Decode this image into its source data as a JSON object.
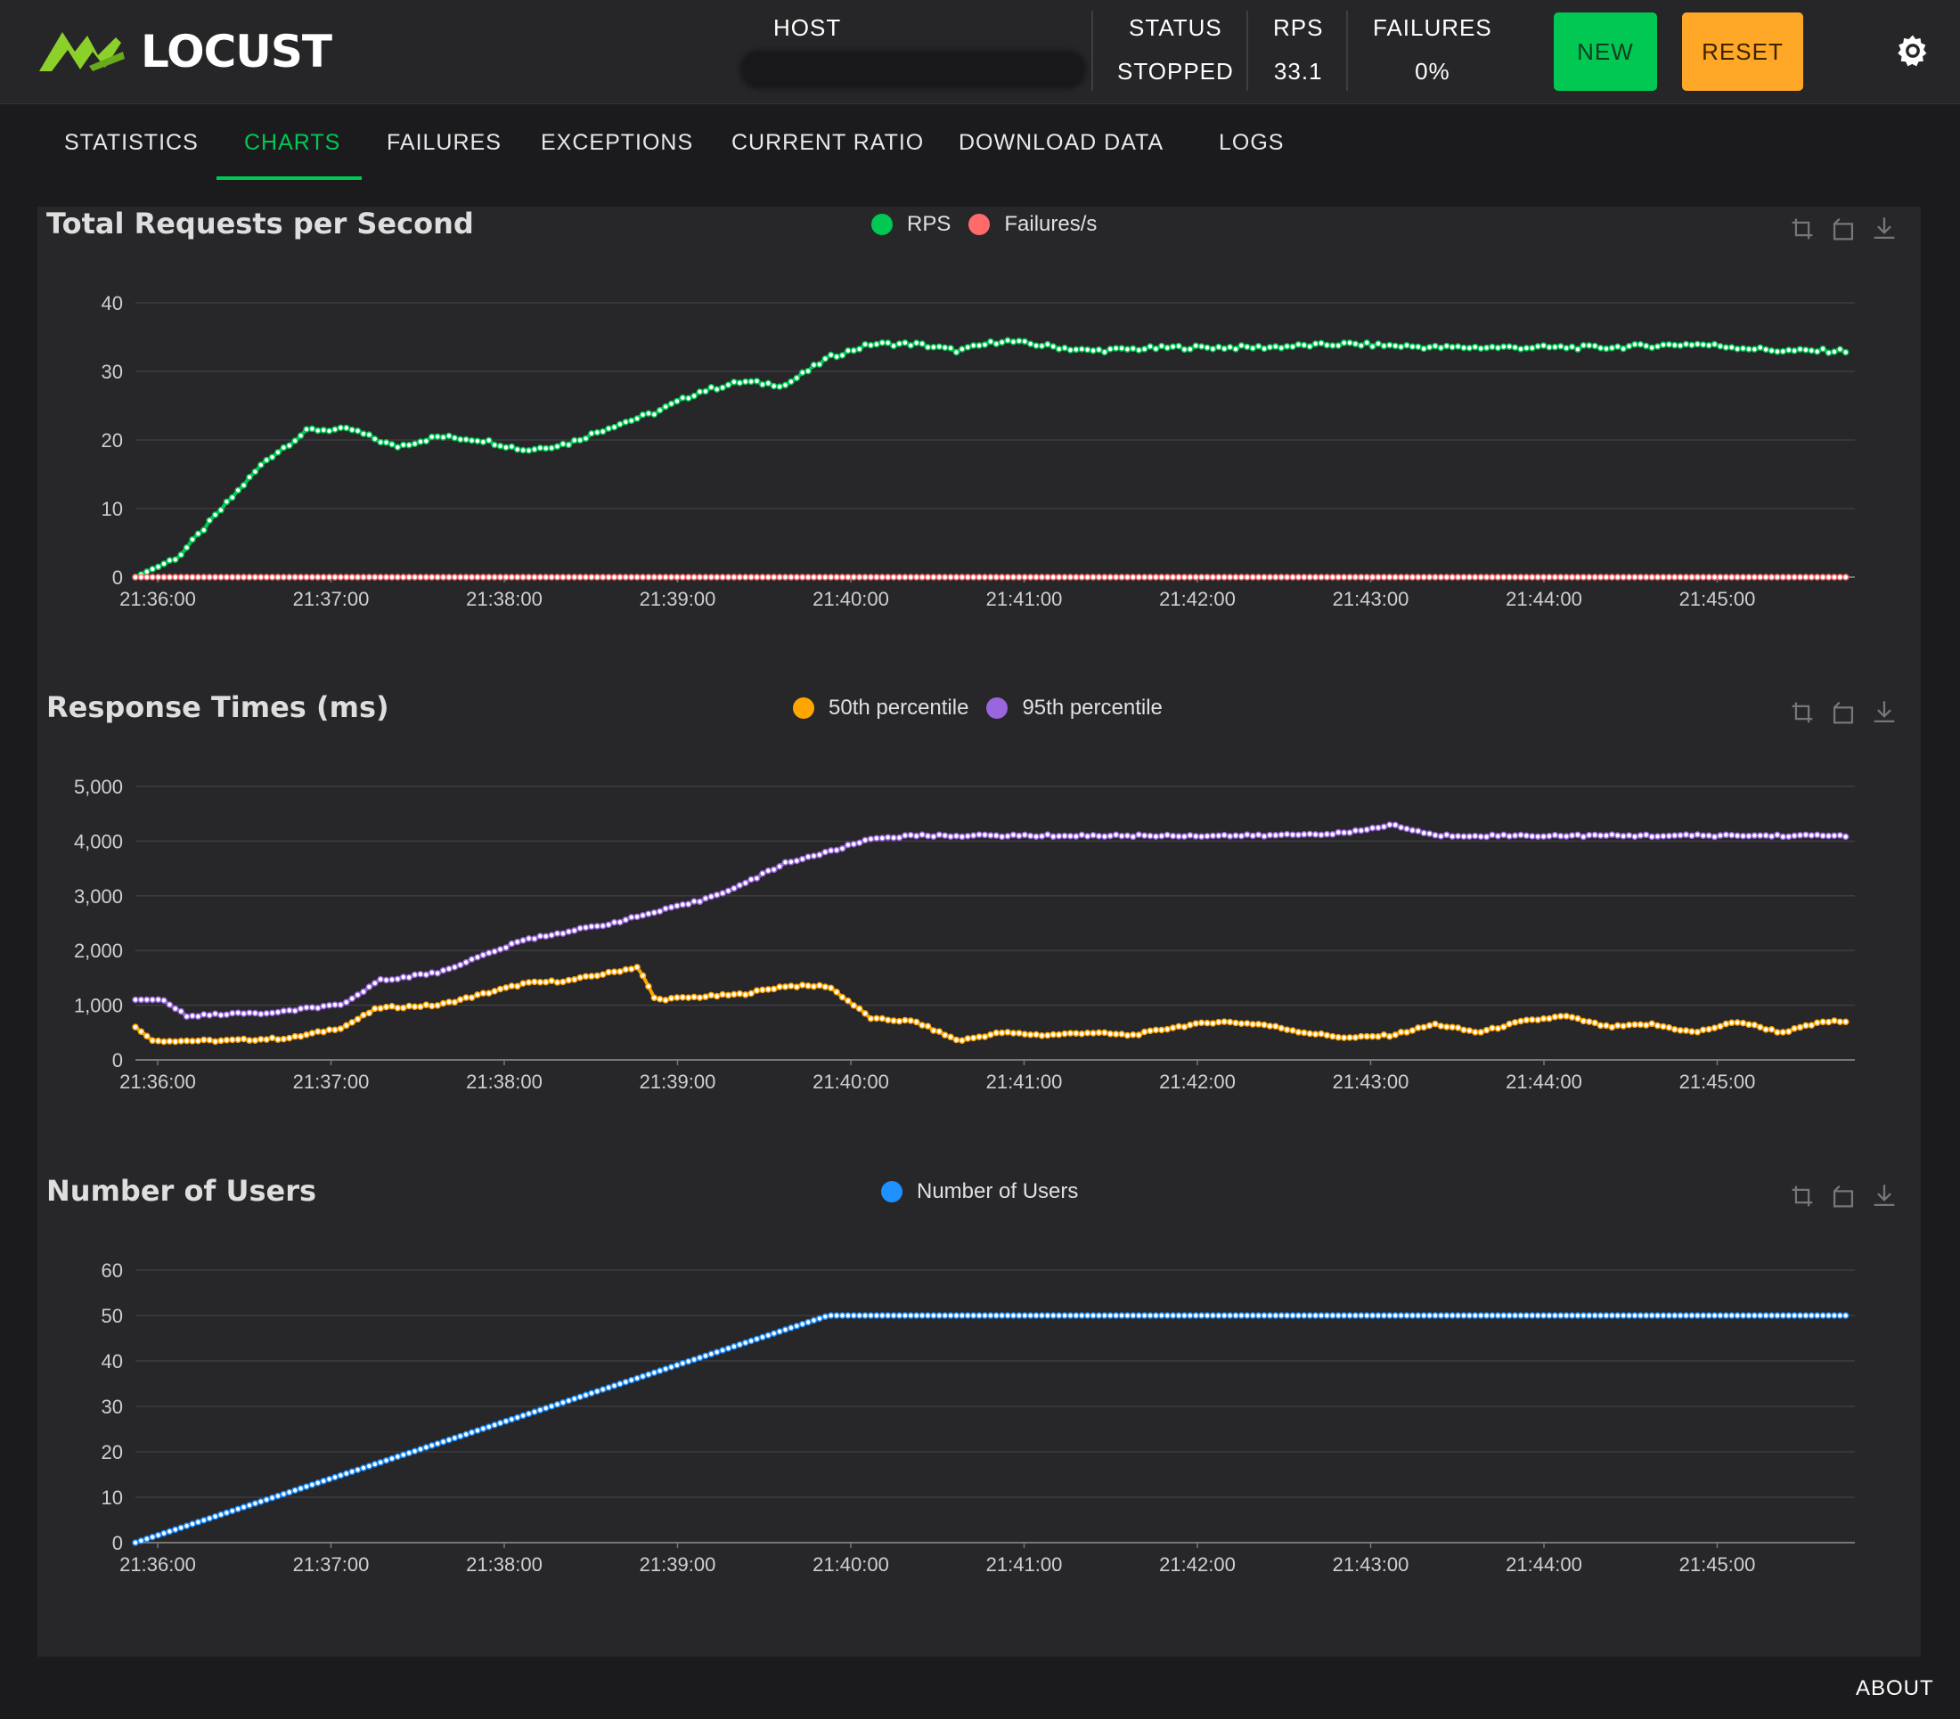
{
  "app": {
    "name": "LOCUST"
  },
  "header": {
    "host_label": "HOST",
    "status_label": "STATUS",
    "status_value": "STOPPED",
    "rps_label": "RPS",
    "rps_value": "33.1",
    "failures_label": "FAILURES",
    "failures_value": "0%",
    "new_button": "NEW",
    "reset_button": "RESET"
  },
  "tabs": [
    "STATISTICS",
    "CHARTS",
    "FAILURES",
    "EXCEPTIONS",
    "CURRENT RATIO",
    "DOWNLOAD DATA",
    "LOGS"
  ],
  "active_tab": "CHARTS",
  "footer": {
    "about": "ABOUT"
  },
  "colors": {
    "accent": "#00c853",
    "reset": "#ffa726",
    "rps": "#00c853",
    "failures": "#ff6b6b",
    "p50": "#ffa500",
    "p95": "#9966dd",
    "users": "#1e90ff"
  },
  "icons": {
    "tool1": "zoom-icon",
    "tool2": "restore-icon",
    "tool3": "download-icon",
    "settings": "gear-icon"
  },
  "chart_data": [
    {
      "type": "line",
      "title": "Total Requests per Second",
      "x_ticks": [
        "21:36:00",
        "21:37:00",
        "21:38:00",
        "21:39:00",
        "21:40:00",
        "21:41:00",
        "21:42:00",
        "21:43:00",
        "21:44:00",
        "21:45:00"
      ],
      "y_ticks": [
        "0",
        "10",
        "20",
        "30",
        "40"
      ],
      "ylim": [
        0,
        40
      ],
      "x_range_minutes": [
        0,
        9.87
      ],
      "series": [
        {
          "name": "RPS",
          "color": "#00c853",
          "points": [
            [
              0,
              0
            ],
            [
              0.25,
              3
            ],
            [
              0.5,
              10
            ],
            [
              0.75,
              17
            ],
            [
              1.0,
              21.5
            ],
            [
              1.25,
              21.5
            ],
            [
              1.5,
              19
            ],
            [
              1.75,
              20.5
            ],
            [
              2.0,
              20
            ],
            [
              2.25,
              18.5
            ],
            [
              2.5,
              19.5
            ],
            [
              2.75,
              22
            ],
            [
              3.0,
              24
            ],
            [
              3.25,
              27
            ],
            [
              3.5,
              28.5
            ],
            [
              3.75,
              28
            ],
            [
              4.0,
              32
            ],
            [
              4.25,
              34
            ],
            [
              4.5,
              34
            ],
            [
              4.75,
              33
            ],
            [
              5.0,
              34.5
            ],
            [
              5.5,
              33
            ],
            [
              6.0,
              33.5
            ],
            [
              6.5,
              33.5
            ],
            [
              7.0,
              34
            ],
            [
              7.5,
              33.5
            ],
            [
              8.0,
              33.5
            ],
            [
              8.5,
              33.5
            ],
            [
              9.0,
              34
            ],
            [
              9.5,
              33
            ],
            [
              9.87,
              33
            ]
          ]
        },
        {
          "name": "Failures/s",
          "color": "#ff6b6b",
          "points": [
            [
              0,
              0
            ],
            [
              9.87,
              0
            ]
          ]
        }
      ]
    },
    {
      "type": "line",
      "title": "Response Times (ms)",
      "x_ticks": [
        "21:36:00",
        "21:37:00",
        "21:38:00",
        "21:39:00",
        "21:40:00",
        "21:41:00",
        "21:42:00",
        "21:43:00",
        "21:44:00",
        "21:45:00"
      ],
      "y_ticks": [
        "0",
        "1,000",
        "2,000",
        "3,000",
        "4,000",
        "5,000"
      ],
      "ylim": [
        0,
        5000
      ],
      "x_range_minutes": [
        0,
        9.87
      ],
      "series": [
        {
          "name": "50th percentile",
          "color": "#ffa500",
          "points": [
            [
              0,
              600
            ],
            [
              0.1,
              350
            ],
            [
              0.5,
              350
            ],
            [
              0.9,
              400
            ],
            [
              1.2,
              600
            ],
            [
              1.4,
              950
            ],
            [
              1.75,
              1000
            ],
            [
              2.0,
              1200
            ],
            [
              2.25,
              1400
            ],
            [
              2.5,
              1450
            ],
            [
              2.75,
              1600
            ],
            [
              2.9,
              1700
            ],
            [
              3.0,
              1100
            ],
            [
              3.25,
              1150
            ],
            [
              3.5,
              1200
            ],
            [
              3.75,
              1350
            ],
            [
              4.0,
              1350
            ],
            [
              4.25,
              750
            ],
            [
              4.5,
              700
            ],
            [
              4.75,
              350
            ],
            [
              5.0,
              500
            ],
            [
              5.25,
              450
            ],
            [
              5.5,
              500
            ],
            [
              5.75,
              450
            ],
            [
              6.0,
              600
            ],
            [
              6.25,
              700
            ],
            [
              6.5,
              650
            ],
            [
              6.75,
              500
            ],
            [
              7.0,
              400
            ],
            [
              7.25,
              450
            ],
            [
              7.5,
              650
            ],
            [
              7.75,
              500
            ],
            [
              8.0,
              700
            ],
            [
              8.25,
              800
            ],
            [
              8.5,
              600
            ],
            [
              8.75,
              650
            ],
            [
              9.0,
              500
            ],
            [
              9.25,
              700
            ],
            [
              9.5,
              500
            ],
            [
              9.75,
              700
            ],
            [
              9.87,
              700
            ]
          ]
        },
        {
          "name": "95th percentile",
          "color": "#9966dd",
          "points": [
            [
              0,
              1100
            ],
            [
              0.15,
              1100
            ],
            [
              0.3,
              800
            ],
            [
              0.6,
              850
            ],
            [
              0.8,
              850
            ],
            [
              1.0,
              950
            ],
            [
              1.2,
              1000
            ],
            [
              1.4,
              1450
            ],
            [
              1.75,
              1600
            ],
            [
              2.0,
              1900
            ],
            [
              2.25,
              2200
            ],
            [
              2.5,
              2350
            ],
            [
              2.75,
              2500
            ],
            [
              3.0,
              2700
            ],
            [
              3.25,
              2900
            ],
            [
              3.5,
              3200
            ],
            [
              3.75,
              3600
            ],
            [
              4.0,
              3800
            ],
            [
              4.25,
              4050
            ],
            [
              4.5,
              4100
            ],
            [
              5.0,
              4100
            ],
            [
              5.5,
              4100
            ],
            [
              6.0,
              4100
            ],
            [
              6.5,
              4100
            ],
            [
              7.0,
              4150
            ],
            [
              7.25,
              4300
            ],
            [
              7.5,
              4100
            ],
            [
              8.0,
              4100
            ],
            [
              8.5,
              4100
            ],
            [
              9.0,
              4100
            ],
            [
              9.5,
              4100
            ],
            [
              9.87,
              4100
            ]
          ]
        }
      ]
    },
    {
      "type": "line",
      "title": "Number of Users",
      "x_ticks": [
        "21:36:00",
        "21:37:00",
        "21:38:00",
        "21:39:00",
        "21:40:00",
        "21:41:00",
        "21:42:00",
        "21:43:00",
        "21:44:00",
        "21:45:00"
      ],
      "y_ticks": [
        "0",
        "10",
        "20",
        "30",
        "40",
        "50",
        "60"
      ],
      "ylim": [
        0,
        60
      ],
      "x_range_minutes": [
        0,
        9.87
      ],
      "series": [
        {
          "name": "Number of Users",
          "color": "#1e90ff",
          "points": [
            [
              0,
              0
            ],
            [
              4.0,
              50
            ],
            [
              9.87,
              50
            ]
          ]
        }
      ]
    }
  ]
}
